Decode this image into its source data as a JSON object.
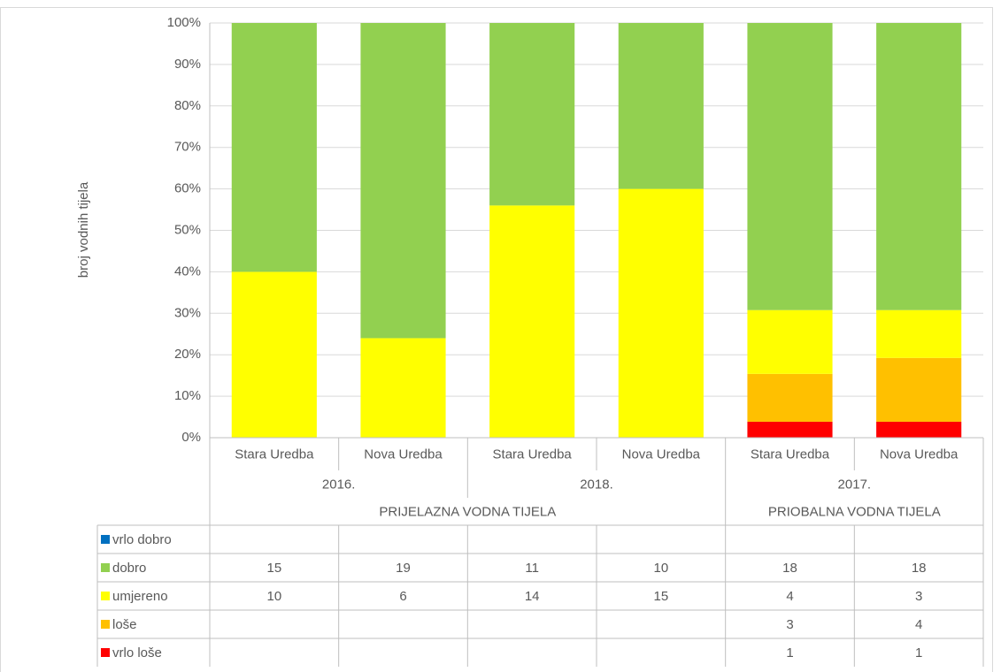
{
  "chart_data": {
    "type": "bar",
    "stacked": "percent",
    "y_label": "broj vodnih tijela",
    "categories": [
      "Stara Uredba",
      "Nova Uredba",
      "Stara Uredba",
      "Nova Uredba",
      "Stara Uredba",
      "Nova Uredba"
    ],
    "years": [
      "2016.",
      "2018.",
      "2017."
    ],
    "groups": [
      "PRIJELAZNA VODNA TIJELA",
      "PRIOBALNA VODNA TIJELA"
    ],
    "series": [
      {
        "name": "vrlo dobro",
        "color": "#0070c0",
        "values": [
          null,
          null,
          null,
          null,
          null,
          null
        ]
      },
      {
        "name": "dobro",
        "color": "#92d050",
        "values": [
          15,
          19,
          11,
          10,
          18,
          18
        ]
      },
      {
        "name": "umjereno",
        "color": "#ffff00",
        "values": [
          10,
          6,
          14,
          15,
          4,
          3
        ]
      },
      {
        "name": "loše",
        "color": "#ffc000",
        "values": [
          null,
          null,
          null,
          null,
          3,
          4
        ]
      },
      {
        "name": "vrlo loše",
        "color": "#ff0000",
        "values": [
          null,
          null,
          null,
          null,
          1,
          1
        ]
      }
    ],
    "ylim": [
      0,
      100
    ],
    "yticks": [
      {
        "value": 0,
        "label": "0%"
      },
      {
        "value": 10,
        "label": "10%"
      },
      {
        "value": 20,
        "label": "20%"
      },
      {
        "value": 30,
        "label": "30%"
      },
      {
        "value": 40,
        "label": "40%"
      },
      {
        "value": 50,
        "label": "50%"
      },
      {
        "value": 60,
        "label": "60%"
      },
      {
        "value": 70,
        "label": "70%"
      },
      {
        "value": 80,
        "label": "80%"
      },
      {
        "value": 90,
        "label": "90%"
      },
      {
        "value": 100,
        "label": "100%"
      }
    ],
    "grid": true
  }
}
